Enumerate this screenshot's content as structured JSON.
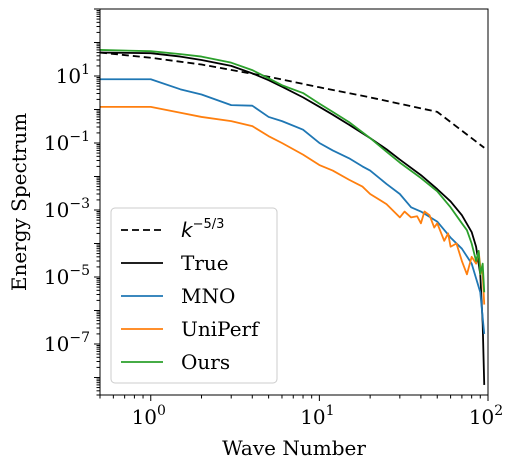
{
  "chart_data": {
    "type": "line",
    "xlabel": "Wave Number",
    "ylabel": "Energy Spectrum",
    "xscale": "log",
    "yscale": "log",
    "xlim": [
      0.5,
      100
    ],
    "ylim": [
      3e-09,
      1000
    ],
    "grid": false,
    "legend_position": "lower-left",
    "x_ticks": [
      {
        "value": 1,
        "base": "10",
        "exp": "0"
      },
      {
        "value": 10,
        "base": "10",
        "exp": "1"
      },
      {
        "value": 100,
        "base": "10",
        "exp": "2"
      }
    ],
    "y_ticks": [
      {
        "value": 10,
        "base": "10",
        "exp": "1"
      },
      {
        "value": 0.1,
        "base": "10",
        "exp": "−1"
      },
      {
        "value": 0.001,
        "base": "10",
        "exp": "−3"
      },
      {
        "value": 1e-05,
        "base": "10",
        "exp": "−5"
      },
      {
        "value": 1e-07,
        "base": "10",
        "exp": "−7"
      }
    ],
    "series": [
      {
        "name": "k^{-5/3}",
        "legend_base": "k",
        "legend_exp": "−5/3",
        "color": "#000000",
        "dashed": true,
        "x": [
          0.5,
          1,
          2,
          5,
          10,
          20,
          50,
          95
        ],
        "y": [
          50,
          35,
          22,
          9.5,
          4.6,
          2.3,
          0.85,
          0.072
        ]
      },
      {
        "name": "True",
        "color": "#000000",
        "dashed": false,
        "x": [
          0.5,
          1,
          1.5,
          2,
          3,
          4,
          5,
          6,
          8,
          10,
          12,
          15,
          20,
          25,
          30,
          40,
          50,
          60,
          70,
          80,
          85,
          90,
          93,
          95
        ],
        "y": [
          50,
          48,
          38,
          30,
          20,
          12,
          7.5,
          4.8,
          2.3,
          1.2,
          0.7,
          0.35,
          0.14,
          0.065,
          0.032,
          0.011,
          0.0042,
          0.0018,
          0.0007,
          0.00022,
          8e-05,
          1.2e-05,
          4e-07,
          6e-09
        ]
      },
      {
        "name": "MNO",
        "color": "#1f77b4",
        "dashed": false,
        "x": [
          0.5,
          1,
          1.5,
          2,
          3,
          4,
          5,
          6,
          8,
          10,
          12,
          15,
          18,
          20,
          25,
          30,
          35,
          40,
          50,
          60,
          70,
          80,
          90,
          95
        ],
        "y": [
          8,
          8,
          4,
          2.8,
          1.35,
          1.3,
          0.6,
          0.45,
          0.25,
          0.1,
          0.06,
          0.035,
          0.02,
          0.015,
          0.006,
          0.003,
          0.0012,
          0.0009,
          0.00045,
          0.00015,
          7e-05,
          2.5e-05,
          3.5e-06,
          2e-07
        ]
      },
      {
        "name": "UniPerf",
        "color": "#ff7f0e",
        "dashed": false,
        "x": [
          0.5,
          1,
          1.5,
          2,
          3,
          4,
          5,
          6,
          8,
          10,
          12,
          15,
          18,
          20,
          25,
          30,
          32,
          35,
          38,
          40,
          42,
          45,
          48,
          50,
          55,
          58,
          60,
          65,
          70,
          75,
          80,
          85,
          88,
          90,
          93,
          95
        ],
        "y": [
          1.2,
          1.2,
          0.8,
          0.6,
          0.45,
          0.32,
          0.16,
          0.1,
          0.045,
          0.022,
          0.015,
          0.008,
          0.005,
          0.003,
          0.0015,
          0.0006,
          0.0009,
          0.0006,
          0.00065,
          0.0004,
          0.0009,
          0.0007,
          0.0003,
          0.0004,
          0.00012,
          0.0002,
          8e-05,
          0.0001,
          3e-05,
          1.2e-05,
          4e-05,
          2.5e-05,
          6e-05,
          2e-05,
          1.2e-05,
          1.5e-06
        ]
      },
      {
        "name": "Ours",
        "color": "#2ca02c",
        "dashed": false,
        "x": [
          0.5,
          1,
          1.5,
          2,
          3,
          4,
          5,
          6,
          8,
          10,
          12,
          15,
          20,
          25,
          30,
          40,
          50,
          60,
          70,
          75,
          80,
          85,
          88,
          90,
          93,
          95
        ],
        "y": [
          60,
          55,
          45,
          38,
          25,
          15,
          8.5,
          5.3,
          3.1,
          1.5,
          0.85,
          0.42,
          0.14,
          0.055,
          0.026,
          0.009,
          0.0036,
          0.0012,
          0.0004,
          0.00025,
          0.0001,
          3e-05,
          6e-05,
          1.2e-05,
          2.5e-05,
          3.5e-06
        ]
      }
    ]
  }
}
